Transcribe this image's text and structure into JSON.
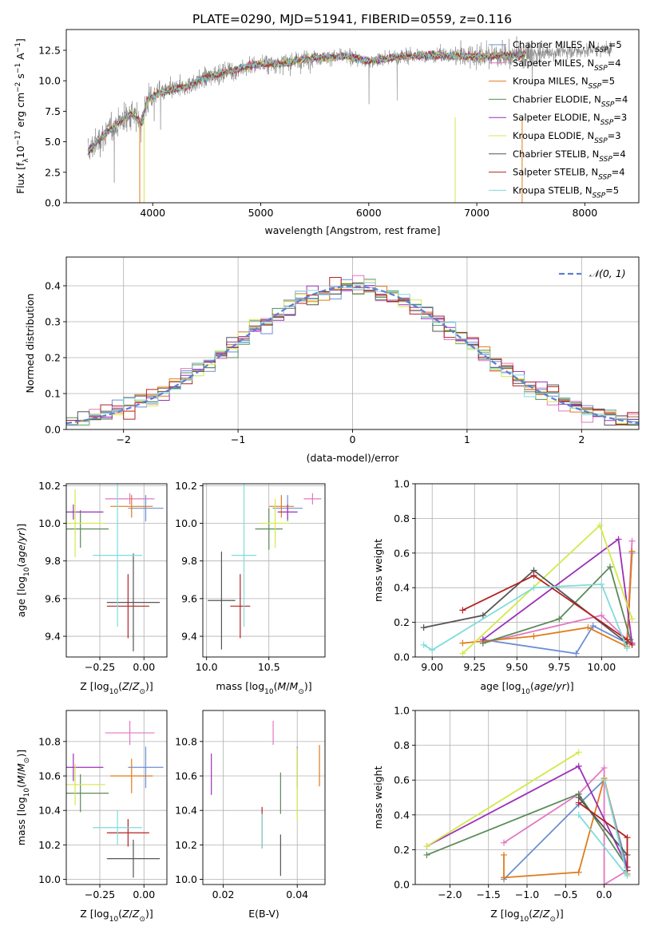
{
  "figure_title": "PLATE=0290, MJD=51941, FIBERID=0559, z=0.116",
  "colors": {
    "Chabrier MILES": "#6b8fd6",
    "Salpeter MILES": "#e377c2",
    "Kroupa MILES": "#e07b1a",
    "Chabrier ELODIE": "#5a8a5a",
    "Salpeter ELODIE": "#9b30b8",
    "Kroupa ELODIE": "#d4e84a",
    "Chabrier STELIB": "#555555",
    "Salpeter STELIB": "#b22222",
    "Kroupa STELIB": "#7fdcdc",
    "spectrum": "#808080"
  },
  "chart_data": [
    {
      "panel": "spectrum",
      "type": "line",
      "title": "PLATE=0290, MJD=51941, FIBERID=0559, z=0.116",
      "xlabel": "wavelength [Angstrom, rest frame]",
      "ylabel": "Flux [f_λ 10^-17 erg cm^-2 s^-1 A^-1]",
      "xlim": [
        3200,
        8500
      ],
      "ylim": [
        0,
        14.2
      ],
      "xticks": [
        4000,
        5000,
        6000,
        7000,
        8000
      ],
      "yticks": [
        "0.0",
        "2.5",
        "5.0",
        "7.5",
        "10.0",
        "12.5"
      ],
      "legend": [
        "Chabrier MILES, N_SSP=5",
        "Salpeter MILES, N_SSP=4",
        "Kroupa MILES, N_SSP=5",
        "Chabrier ELODIE, N_SSP=4",
        "Salpeter ELODIE, N_SSP=3",
        "Kroupa ELODIE, N_SSP=3",
        "Chabrier STELIB, N_SSP=4",
        "Salpeter STELIB, N_SSP=4",
        "Kroupa STELIB, N_SSP=5"
      ],
      "legend_loc": "lower right",
      "continuum_x": [
        3400,
        3600,
        3800,
        3900,
        3950,
        4050,
        4300,
        4500,
        4800,
        5000,
        5200,
        5500,
        5800,
        6000,
        6300,
        6600,
        7000,
        7400,
        7800,
        8250
      ],
      "continuum_y": [
        4.2,
        6.0,
        7.3,
        6.6,
        8.4,
        9.0,
        9.5,
        10.3,
        11.0,
        11.4,
        11.4,
        11.9,
        12.0,
        11.6,
        12.0,
        12.1,
        12.0,
        12.1,
        12.4,
        12.6
      ],
      "model_range": [
        3400,
        7450
      ],
      "observed_range": [
        3400,
        8250
      ]
    },
    {
      "panel": "residuals",
      "type": "histogram",
      "xlabel": "(data-model)/error",
      "ylabel": "Normed distribution",
      "xlim": [
        -2.5,
        2.5
      ],
      "ylim": [
        0,
        0.48
      ],
      "xticks": [
        "−2",
        "−1",
        "0",
        "1",
        "2"
      ],
      "yticks": [
        "0.0",
        "0.1",
        "0.2",
        "0.3",
        "0.4"
      ],
      "bin_width": 0.1,
      "reference": "N(0,1)",
      "legend": [
        "𝒩(0, 1)"
      ],
      "legend_loc": "upper right"
    },
    {
      "panel": "age-Z",
      "type": "errorbar",
      "xlabel": "Z [log10(Z/Z⊙)]",
      "ylabel": "age  [log10(age/yr)]",
      "xlim": [
        -0.44,
        0.13
      ],
      "ylim": [
        9.29,
        10.21
      ],
      "xticks": [
        -0.25,
        0.0
      ],
      "xticklabels": [
        "−0.25",
        "0.00"
      ],
      "yticks": [
        9.4,
        9.6,
        9.8,
        10.0,
        10.2
      ],
      "yticklabels": [
        "9.4",
        "9.6",
        "9.8",
        "10.0",
        "10.2"
      ],
      "points": [
        {
          "series": "Chabrier MILES",
          "x": 0.01,
          "xerr": 0.1,
          "y": 10.08,
          "yerr": 0.07
        },
        {
          "series": "Salpeter MILES",
          "x": -0.08,
          "xerr": 0.14,
          "y": 10.13,
          "yerr": 0.03
        },
        {
          "series": "Kroupa MILES",
          "x": -0.07,
          "xerr": 0.12,
          "y": 10.09,
          "yerr": 0.06
        },
        {
          "series": "Chabrier ELODIE",
          "x": -0.36,
          "xerr": 0.16,
          "y": 9.97,
          "yerr": 0.1
        },
        {
          "series": "Salpeter ELODIE",
          "x": -0.4,
          "xerr": 0.17,
          "y": 10.06,
          "yerr": 0.04
        },
        {
          "series": "Kroupa ELODIE",
          "x": -0.39,
          "xerr": 0.17,
          "y": 10.0,
          "yerr": 0.18
        },
        {
          "series": "Chabrier STELIB",
          "x": -0.06,
          "xerr": 0.15,
          "y": 9.58,
          "yerr": 0.26
        },
        {
          "series": "Salpeter STELIB",
          "x": -0.09,
          "xerr": 0.12,
          "y": 9.56,
          "yerr": 0.17
        },
        {
          "series": "Kroupa STELIB",
          "x": -0.15,
          "xerr": 0.14,
          "y": 9.83,
          "yerr": 0.38
        }
      ]
    },
    {
      "panel": "age-mass",
      "type": "errorbar",
      "xlabel": "mass [log10(M/M⊙)]",
      "ylabel": "",
      "xlim": [
        9.97,
        10.95
      ],
      "ylim": [
        9.29,
        10.21
      ],
      "xticks": [
        10.0,
        10.5
      ],
      "xticklabels": [
        "10.0",
        "10.5"
      ],
      "yticks": [
        9.4,
        9.6,
        9.8,
        10.0,
        10.2
      ],
      "yticklabels": [
        "9.4",
        "9.6",
        "9.8",
        "10.0",
        "10.2"
      ],
      "points": [
        {
          "series": "Chabrier MILES",
          "x": 10.65,
          "xerr": 0.12,
          "y": 10.08,
          "yerr": 0.07
        },
        {
          "series": "Salpeter MILES",
          "x": 10.85,
          "xerr": 0.07,
          "y": 10.13,
          "yerr": 0.03
        },
        {
          "series": "Kroupa MILES",
          "x": 10.6,
          "xerr": 0.1,
          "y": 10.09,
          "yerr": 0.06
        },
        {
          "series": "Chabrier ELODIE",
          "x": 10.5,
          "xerr": 0.11,
          "y": 9.97,
          "yerr": 0.11
        },
        {
          "series": "Salpeter ELODIE",
          "x": 10.65,
          "xerr": 0.08,
          "y": 10.06,
          "yerr": 0.04
        },
        {
          "series": "Kroupa ELODIE",
          "x": 10.55,
          "xerr": 0.12,
          "y": 10.0,
          "yerr": 0.13
        },
        {
          "series": "Chabrier STELIB",
          "x": 10.12,
          "xerr": 0.11,
          "y": 9.59,
          "yerr": 0.26
        },
        {
          "series": "Salpeter STELIB",
          "x": 10.27,
          "xerr": 0.08,
          "y": 9.56,
          "yerr": 0.17
        },
        {
          "series": "Kroupa STELIB",
          "x": 10.3,
          "xerr": 0.1,
          "y": 9.83,
          "yerr": 0.38
        }
      ]
    },
    {
      "panel": "massweight-age",
      "type": "line",
      "xlabel": "age  [log10(age/yr)]",
      "ylabel": "mass weight",
      "xlim": [
        8.9,
        10.22
      ],
      "ylim": [
        0,
        1.0
      ],
      "xticks": [
        9.0,
        9.25,
        9.5,
        9.75,
        10.0
      ],
      "xticklabels": [
        "9.00",
        "9.25",
        "9.50",
        "9.75",
        "10.00"
      ],
      "yticks": [
        0.0,
        0.2,
        0.4,
        0.6,
        0.8,
        1.0
      ],
      "yticklabels": [
        "0.0",
        "0.2",
        "0.4",
        "0.6",
        "0.8",
        "1.0"
      ],
      "series": [
        {
          "name": "Chabrier MILES",
          "x": [
            9.3,
            9.85,
            9.95,
            10.15,
            10.18
          ],
          "y": [
            0.1,
            0.02,
            0.18,
            0.08,
            0.6
          ]
        },
        {
          "name": "Salpeter MILES",
          "x": [
            9.3,
            10.0,
            10.15,
            10.18
          ],
          "y": [
            0.08,
            0.24,
            0.1,
            0.67
          ]
        },
        {
          "name": "Kroupa MILES",
          "x": [
            9.18,
            9.6,
            9.92,
            10.15,
            10.18
          ],
          "y": [
            0.08,
            0.12,
            0.17,
            0.06,
            0.61
          ]
        },
        {
          "name": "Chabrier ELODIE",
          "x": [
            9.3,
            9.75,
            10.05,
            10.17
          ],
          "y": [
            0.08,
            0.22,
            0.52,
            0.1
          ]
        },
        {
          "name": "Salpeter ELODIE",
          "x": [
            9.3,
            10.1,
            10.18
          ],
          "y": [
            0.1,
            0.68,
            0.08
          ]
        },
        {
          "name": "Kroupa ELODIE",
          "x": [
            9.18,
            9.99,
            10.18
          ],
          "y": [
            0.02,
            0.76,
            0.22
          ]
        },
        {
          "name": "Chabrier STELIB",
          "x": [
            8.95,
            9.3,
            9.6,
            10.15
          ],
          "y": [
            0.17,
            0.24,
            0.5,
            0.08
          ]
        },
        {
          "name": "Salpeter STELIB",
          "x": [
            9.18,
            9.6,
            10.15,
            10.18
          ],
          "y": [
            0.27,
            0.47,
            0.1,
            0.07
          ]
        },
        {
          "name": "Kroupa STELIB",
          "x": [
            8.95,
            9.0,
            9.6,
            10.0,
            10.15
          ],
          "y": [
            0.07,
            0.04,
            0.4,
            0.42,
            0.05
          ]
        }
      ]
    },
    {
      "panel": "mass-Z",
      "type": "errorbar",
      "xlabel": "Z [log10(Z/Z⊙)]",
      "ylabel": "mass [log10(M/M⊙)]",
      "xlim": [
        -0.44,
        0.13
      ],
      "ylim": [
        9.97,
        10.98
      ],
      "xticks": [
        -0.25,
        0.0
      ],
      "xticklabels": [
        "−0.25",
        "0.00"
      ],
      "yticks": [
        10.0,
        10.2,
        10.4,
        10.6,
        10.8
      ],
      "yticklabels": [
        "10.0",
        "10.2",
        "10.4",
        "10.6",
        "10.8"
      ],
      "points": [
        {
          "series": "Chabrier MILES",
          "x": 0.01,
          "xerr": 0.1,
          "y": 10.65,
          "yerr": 0.12
        },
        {
          "series": "Salpeter MILES",
          "x": -0.08,
          "xerr": 0.14,
          "y": 10.85,
          "yerr": 0.07
        },
        {
          "series": "Kroupa MILES",
          "x": -0.07,
          "xerr": 0.12,
          "y": 10.6,
          "yerr": 0.1
        },
        {
          "series": "Chabrier ELODIE",
          "x": -0.36,
          "xerr": 0.16,
          "y": 10.5,
          "yerr": 0.11
        },
        {
          "series": "Salpeter ELODIE",
          "x": -0.4,
          "xerr": 0.17,
          "y": 10.65,
          "yerr": 0.08
        },
        {
          "series": "Kroupa ELODIE",
          "x": -0.39,
          "xerr": 0.17,
          "y": 10.55,
          "yerr": 0.12
        },
        {
          "series": "Chabrier STELIB",
          "x": -0.06,
          "xerr": 0.15,
          "y": 10.12,
          "yerr": 0.11
        },
        {
          "series": "Salpeter STELIB",
          "x": -0.09,
          "xerr": 0.12,
          "y": 10.27,
          "yerr": 0.08
        },
        {
          "series": "Kroupa STELIB",
          "x": -0.15,
          "xerr": 0.14,
          "y": 10.3,
          "yerr": 0.1
        }
      ]
    },
    {
      "panel": "mass-ebv",
      "type": "errorbar",
      "xlabel": "E(B-V)",
      "ylabel": "",
      "xlim": [
        0.0145,
        0.0475
      ],
      "ylim": [
        9.97,
        10.98
      ],
      "xticks": [
        0.02,
        0.04
      ],
      "xticklabels": [
        "0.02",
        "0.04"
      ],
      "yticks": [
        10.0,
        10.2,
        10.4,
        10.6,
        10.8
      ],
      "yticklabels": [
        "10.0",
        "10.2",
        "10.4",
        "10.6",
        "10.8"
      ],
      "points": [
        {
          "series": "Chabrier MILES",
          "x": 0.04,
          "xerr": 0.0,
          "y": 10.65,
          "yerr": 0.12
        },
        {
          "series": "Salpeter MILES",
          "x": 0.0335,
          "xerr": 0.0,
          "y": 10.85,
          "yerr": 0.07
        },
        {
          "series": "Kroupa MILES",
          "x": 0.046,
          "xerr": 0.0,
          "y": 10.66,
          "yerr": 0.12
        },
        {
          "series": "Chabrier ELODIE",
          "x": 0.0355,
          "xerr": 0.0,
          "y": 10.5,
          "yerr": 0.12
        },
        {
          "series": "Salpeter ELODIE",
          "x": 0.0168,
          "xerr": 0.0,
          "y": 10.61,
          "yerr": 0.12
        },
        {
          "series": "Kroupa ELODIE",
          "x": 0.04,
          "xerr": 0.0,
          "y": 10.55,
          "yerr": 0.21
        },
        {
          "series": "Chabrier STELIB",
          "x": 0.0355,
          "xerr": 0.0,
          "y": 10.14,
          "yerr": 0.12
        },
        {
          "series": "Salpeter STELIB",
          "x": 0.0305,
          "xerr": 0.0,
          "y": 10.3,
          "yerr": 0.12
        },
        {
          "series": "Kroupa STELIB",
          "x": 0.0305,
          "xerr": 0.0,
          "y": 10.28,
          "yerr": 0.1
        }
      ]
    },
    {
      "panel": "massweight-Z",
      "type": "line",
      "xlabel": "Z [log10(Z/Z⊙)]",
      "ylabel": "mass weight",
      "xlim": [
        -2.45,
        0.45
      ],
      "ylim": [
        0,
        1.0
      ],
      "xticks": [
        -2.0,
        -1.5,
        -1.0,
        -0.5,
        0.0
      ],
      "xticklabels": [
        "−2.0",
        "−1.5",
        "−1.0",
        "−0.5",
        "0.0"
      ],
      "yticks": [
        0.0,
        0.2,
        0.4,
        0.6,
        0.8,
        1.0
      ],
      "yticklabels": [
        "0.0",
        "0.2",
        "0.4",
        "0.6",
        "0.8",
        "1.0"
      ],
      "series": [
        {
          "name": "Chabrier MILES",
          "x": [
            -1.3,
            -0.33,
            0.0,
            0.3
          ],
          "y": [
            0.03,
            0.46,
            0.6,
            0.1
          ]
        },
        {
          "name": "Salpeter MILES",
          "x": [
            -1.3,
            -0.33,
            0.0,
            0.0,
            0.3
          ],
          "y": [
            0.24,
            0.52,
            0.67,
            0.0,
            0.08
          ]
        },
        {
          "name": "Kroupa MILES",
          "x": [
            -1.3,
            -1.3,
            -0.33,
            0.0,
            0.3
          ],
          "y": [
            0.17,
            0.04,
            0.07,
            0.61,
            0.06
          ]
        },
        {
          "name": "Chabrier ELODIE",
          "x": [
            -2.3,
            -0.33,
            0.3
          ],
          "y": [
            0.17,
            0.52,
            0.1
          ]
        },
        {
          "name": "Salpeter ELODIE",
          "x": [
            -2.3,
            -0.33,
            0.3
          ],
          "y": [
            0.22,
            0.68,
            0.1
          ]
        },
        {
          "name": "Kroupa ELODIE",
          "x": [
            -2.3,
            -0.33
          ],
          "y": [
            0.22,
            0.76
          ]
        },
        {
          "name": "Chabrier STELIB",
          "x": [
            -0.33,
            0.3
          ],
          "y": [
            0.5,
            0.17
          ]
        },
        {
          "name": "Salpeter STELIB",
          "x": [
            -0.33,
            0.3,
            0.3
          ],
          "y": [
            0.47,
            0.27,
            0.08
          ]
        },
        {
          "name": "Kroupa STELIB",
          "x": [
            -0.33,
            0.3,
            0.0
          ],
          "y": [
            0.4,
            0.05,
            0.6
          ]
        }
      ]
    }
  ]
}
